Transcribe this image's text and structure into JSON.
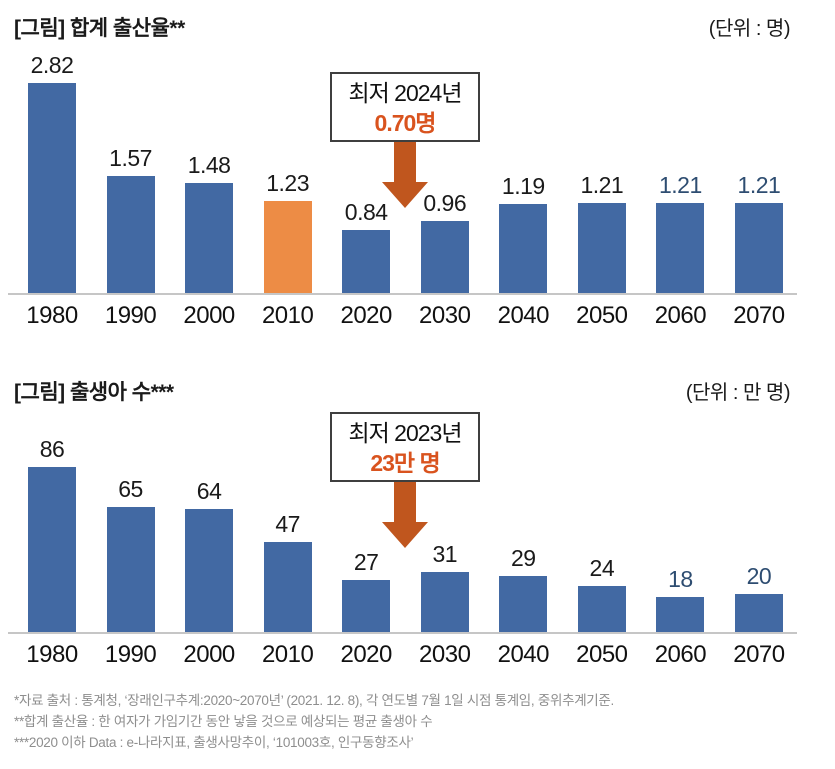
{
  "colors": {
    "bar_blue": "#4269A3",
    "bar_orange": "#ED8C45",
    "arrow_orange": "#C0561E",
    "accent_text": "#D9531E",
    "navy_label": "#2E4D71",
    "axis_gray": "#C6C6C6"
  },
  "chart_data": [
    {
      "type": "bar",
      "title": "[그림] 합계 출산율**",
      "unit": "(단위 : 명)",
      "categories": [
        "1980",
        "1990",
        "2000",
        "2010",
        "2020",
        "2030",
        "2040",
        "2050",
        "2060",
        "2070"
      ],
      "values": [
        2.82,
        1.57,
        1.48,
        1.23,
        0.84,
        0.96,
        1.19,
        1.21,
        1.21,
        1.21
      ],
      "value_labels": [
        "2.82",
        "1.57",
        "1.48",
        "1.23",
        "0.84",
        "0.96",
        "1.19",
        "1.21",
        "1.21",
        "1.21"
      ],
      "highlight_index": 3,
      "navy_label_indices": [
        8,
        9
      ],
      "ylim": [
        0,
        3
      ],
      "grid": false,
      "legend": "none",
      "annotation": {
        "line1": "최저 2024년",
        "line2": "0.70명",
        "points_between": [
          "2020",
          "2030"
        ]
      }
    },
    {
      "type": "bar",
      "title": "[그림] 출생아 수***",
      "unit": "(단위 : 만 명)",
      "categories": [
        "1980",
        "1990",
        "2000",
        "2010",
        "2020",
        "2030",
        "2040",
        "2050",
        "2060",
        "2070"
      ],
      "values": [
        86,
        65,
        64,
        47,
        27,
        31,
        29,
        24,
        18,
        20
      ],
      "value_labels": [
        "86",
        "65",
        "64",
        "47",
        "27",
        "31",
        "29",
        "24",
        "18",
        "20"
      ],
      "highlight_index": -1,
      "navy_label_indices": [
        8,
        9
      ],
      "ylim": [
        0,
        95
      ],
      "grid": false,
      "legend": "none",
      "annotation": {
        "line1": "최저 2023년",
        "line2": "23만 명",
        "points_between": [
          "2020",
          "2030"
        ]
      }
    }
  ],
  "footnotes": [
    "*자료 출처 : 통계청, ‘장래인구추계:2020~2070년’ (2021. 12. 8), 각 연도별 7월 1일 시점 통계임, 중위추계기준.",
    "**합계 출산율 : 한 여자가 가임기간 동안 낳을 것으로 예상되는 평균 출생아 수",
    "***2020 이하 Data : e-나라지표, 출생사망추이, ‘101003호, 인구동향조사’"
  ]
}
